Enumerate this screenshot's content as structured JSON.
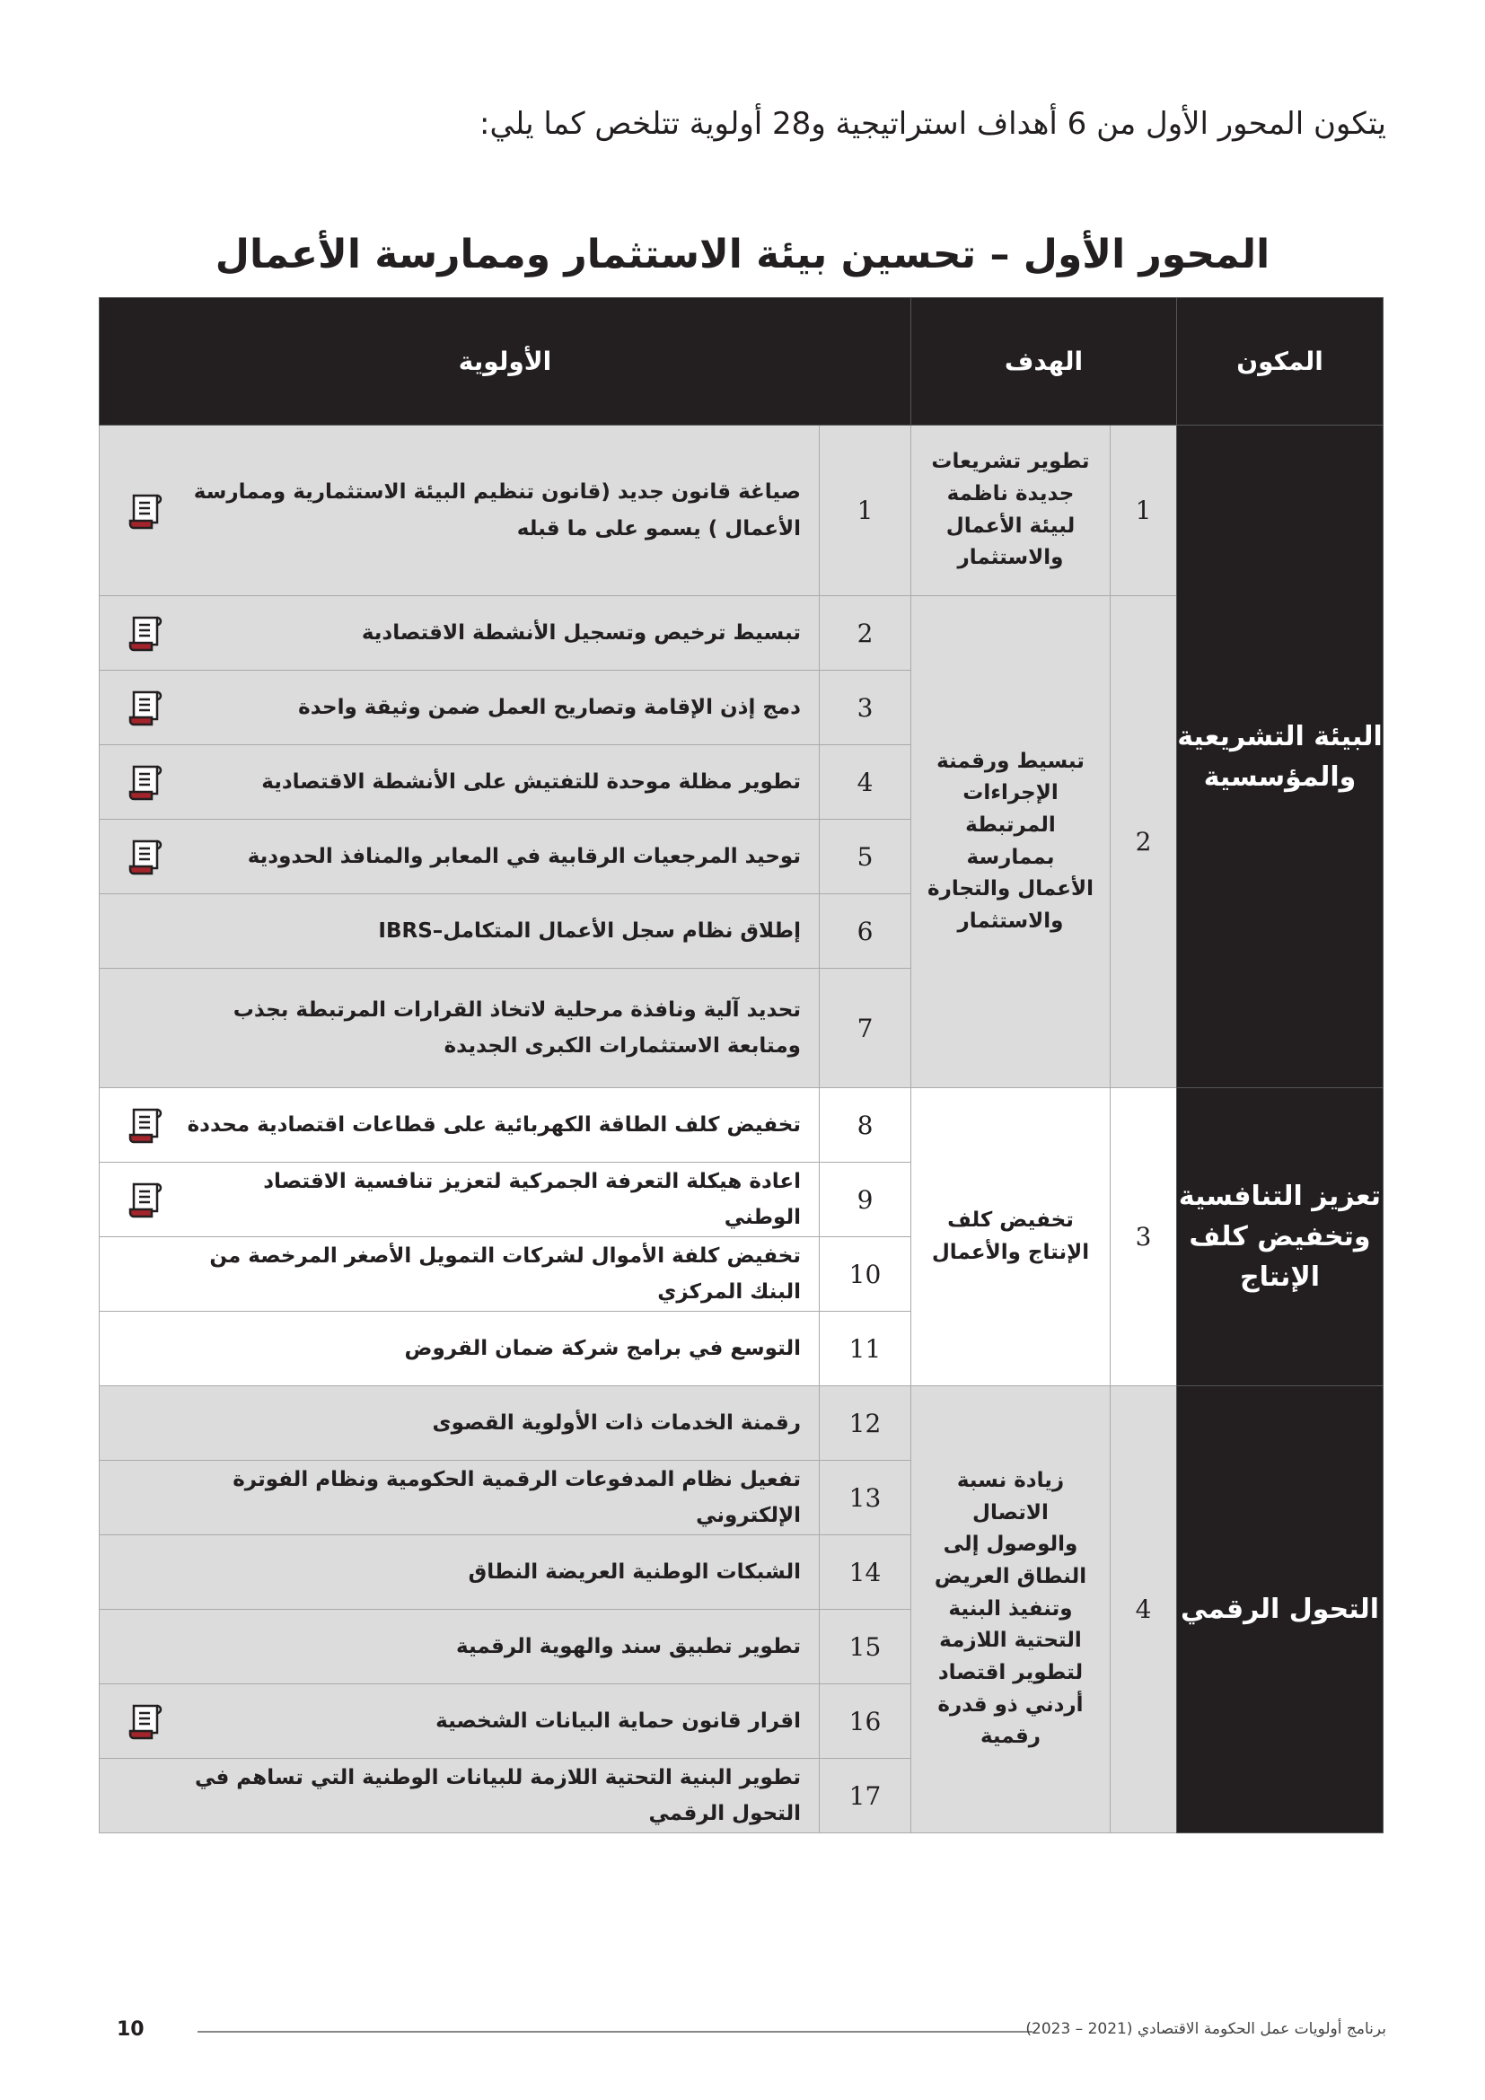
{
  "intro": "يتكون المحور الأول من 6 أهداف استراتيجية و28 أولوية تتلخص كما يلي:",
  "title": "المحور الأول – تحسين بيئة الاستثمار وممارسة الأعمال",
  "headers": {
    "component": "المكون",
    "goal": "الهدف",
    "priority": "الأولوية"
  },
  "components": [
    {
      "label": "البيئة التشريعية والمؤسسية"
    },
    {
      "label": "تعزيز التنافسية وتخفيض كلف الإنتاج"
    },
    {
      "label": "التحول الرقمي"
    }
  ],
  "goals": [
    {
      "num": "1",
      "label": "تطوير تشريعات جديدة ناظمة لبيئة الأعمال والاستثمار"
    },
    {
      "num": "2",
      "label": "تبسيط ورقمنة الإجراءات المرتبطة بممارسة الأعمال والتجارة والاستثمار"
    },
    {
      "num": "3",
      "label": "تخفيض كلف الإنتاج والأعمال"
    },
    {
      "num": "4",
      "label": "زيادة نسبة الاتصال والوصول إلى النطاق العريض وتنفيذ البنية التحتية اللازمة لتطوير اقتصاد أردني ذو قدرة رقمية"
    }
  ],
  "priorities": [
    {
      "num": "1",
      "label": "صياغة قانون جديد (قانون تنظيم البيئة الاستثمارية وممارسة الأعمال ) يسمو على ما قبله",
      "icon": "legislation-scroll-icon"
    },
    {
      "num": "2",
      "label": "تبسيط ترخيص وتسجيل الأنشطة الاقتصادية",
      "icon": "legislation-scroll-icon"
    },
    {
      "num": "3",
      "label": "دمج إذن الإقامة وتصاريح العمل ضمن وثيقة واحدة",
      "icon": "legislation-scroll-icon"
    },
    {
      "num": "4",
      "label": "تطوير مظلة موحدة للتفتيش على الأنشطة الاقتصادية",
      "icon": "legislation-scroll-icon"
    },
    {
      "num": "5",
      "label": "توحيد المرجعيات الرقابية في المعابر والمنافذ الحدودية",
      "icon": "legislation-scroll-icon"
    },
    {
      "num": "6",
      "label": "إطلاق نظام سجل الأعمال المتكامل–IBRS"
    },
    {
      "num": "7",
      "label": "تحديد آلية ونافذة مرحلية لاتخاذ القرارات المرتبطة بجذب ومتابعة الاستثمارات الكبرى الجديدة"
    },
    {
      "num": "8",
      "label": "تخفيض كلف الطاقة  الكهربائية على قطاعات اقتصادية محددة",
      "icon": "legislation-scroll-icon"
    },
    {
      "num": "9",
      "label": "اعادة هيكلة التعرفة الجمركية لتعزيز تنافسية الاقتصاد الوطني",
      "icon": "legislation-scroll-icon"
    },
    {
      "num": "10",
      "label": "تخفيض كلفة الأموال لشركات التمويل الأصغر المرخصة من البنك المركزي"
    },
    {
      "num": "11",
      "label": "التوسع في برامج شركة ضمان القروض"
    },
    {
      "num": "12",
      "label": "رقمنة الخدمات ذات الأولوية القصوى"
    },
    {
      "num": "13",
      "label": "تفعيل نظام المدفوعات الرقمية الحكومية ونظام الفوترة الإلكتروني"
    },
    {
      "num": "14",
      "label": "الشبكات الوطنية العريضة النطاق"
    },
    {
      "num": "15",
      "label": "تطوير تطبيق سند والهوية الرقمية"
    },
    {
      "num": "16",
      "label": "اقرار قانون حماية البيانات الشخصية",
      "icon": "legislation-scroll-icon"
    },
    {
      "num": "17",
      "label": "تطوير البنية التحتية اللازمة للبيانات الوطنية التي تساهم في التحول الرقمي"
    }
  ],
  "footer": {
    "page": "10",
    "text": "برنامج أولويات عمل الحكومة الاقتصادي (2021 – 2023)"
  },
  "colors": {
    "header": "#231f20",
    "shade": "#dcdcdc",
    "icon_accent": "#a3242b"
  }
}
